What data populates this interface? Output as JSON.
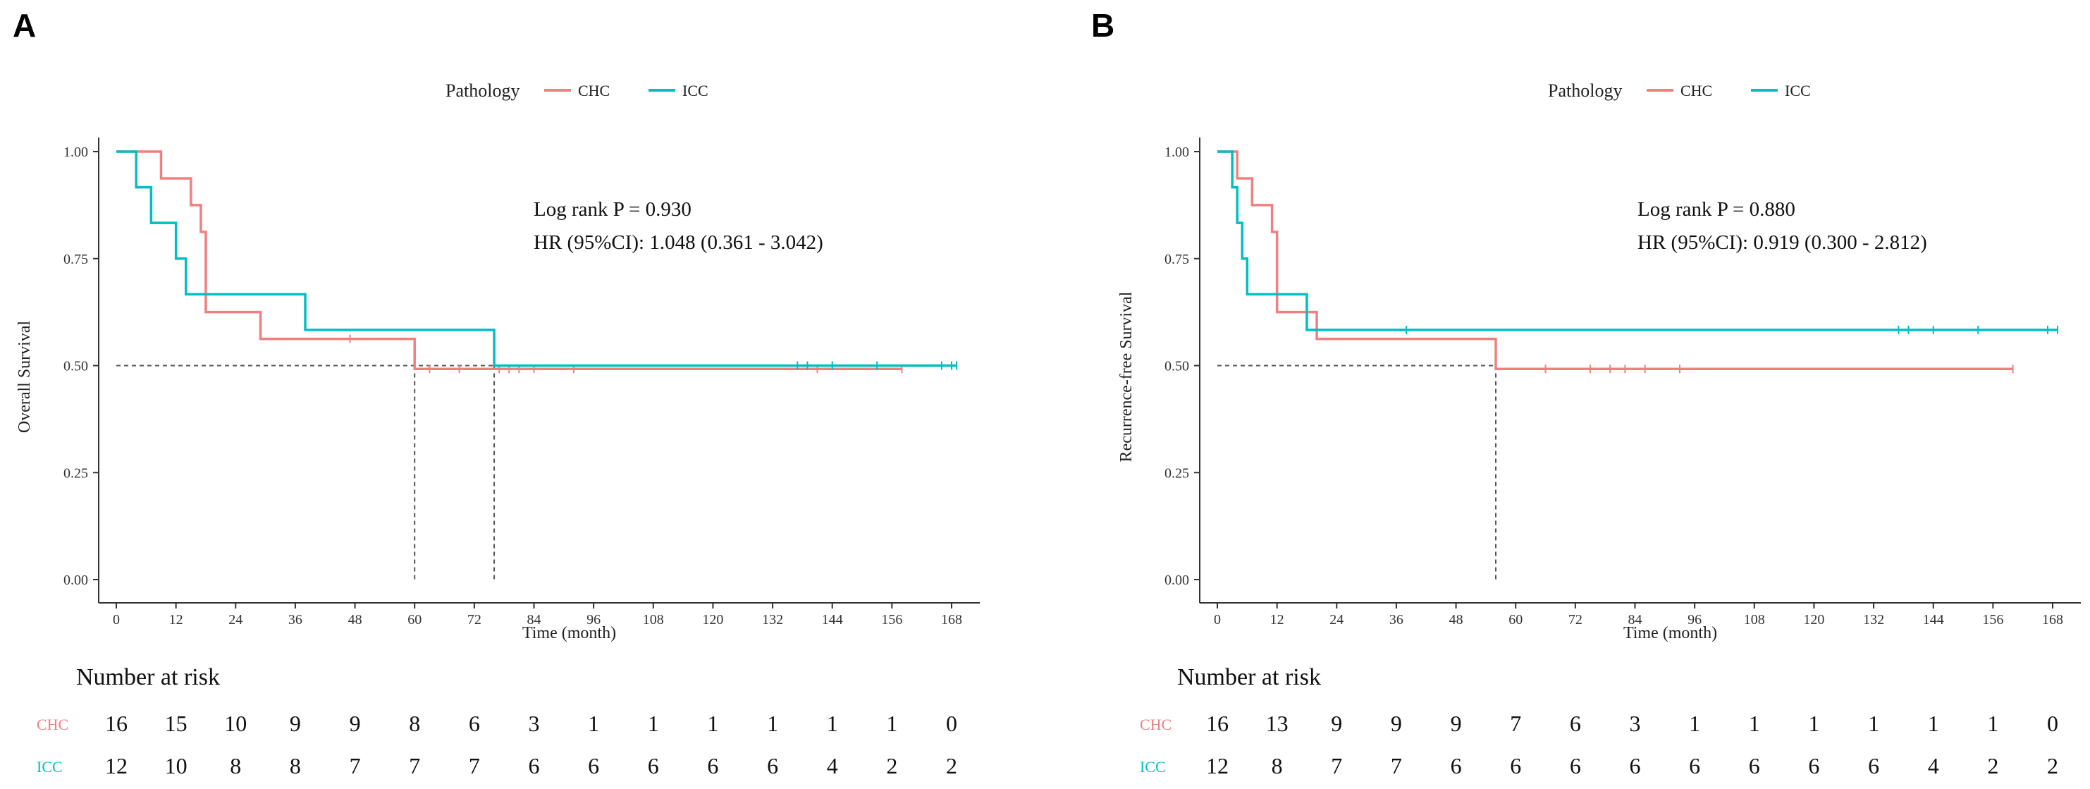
{
  "colors": {
    "CHC": "#F08080",
    "ICC": "#00BFC4"
  },
  "chart_data": [
    {
      "type": "line",
      "panel": "A",
      "legend": {
        "title": "Pathology",
        "entries": [
          "CHC",
          "ICC"
        ],
        "placement": "top-center"
      },
      "ylabel": "Overall Survival",
      "xlabel": "Time (month)",
      "xlim": [
        0,
        168
      ],
      "ylim": [
        0,
        1
      ],
      "xticks": [
        0,
        12,
        24,
        36,
        48,
        60,
        72,
        84,
        96,
        108,
        120,
        132,
        144,
        156,
        168
      ],
      "yticks": [
        0,
        0.25,
        0.5,
        0.75,
        1.0
      ],
      "ytick_labels": [
        "0.00",
        "0.25",
        "0.50",
        "0.75",
        "1.00"
      ],
      "annotations": [
        "Log rank P = 0.930",
        "HR (95%CI): 1.048 (0.361 - 3.042)"
      ],
      "median_lines": [
        60,
        76
      ],
      "series": [
        {
          "name": "CHC",
          "steps": [
            [
              0,
              1.0
            ],
            [
              9,
              0.9375
            ],
            [
              15,
              0.875
            ],
            [
              17,
              0.8125
            ],
            [
              18,
              0.625
            ],
            [
              29,
              0.5625
            ],
            [
              60,
              0.4922
            ],
            [
              158,
              0.4922
            ]
          ],
          "censors": [
            47,
            63,
            69,
            77,
            79,
            81,
            84,
            92,
            141,
            158
          ]
        },
        {
          "name": "ICC",
          "steps": [
            [
              0,
              1.0
            ],
            [
              4,
              0.9167
            ],
            [
              7,
              0.8333
            ],
            [
              12,
              0.75
            ],
            [
              14,
              0.6667
            ],
            [
              38,
              0.5833
            ],
            [
              76,
              0.5
            ],
            [
              169,
              0.5
            ]
          ],
          "censors": [
            137,
            139,
            144,
            153,
            166,
            168,
            169
          ]
        }
      ],
      "risk_table": {
        "title": "Number at risk",
        "times": [
          0,
          12,
          24,
          36,
          48,
          60,
          72,
          84,
          96,
          108,
          120,
          132,
          144,
          156,
          168
        ],
        "rows": [
          {
            "name": "CHC",
            "values": [
              "16",
              "15",
              "10",
              "9",
              "9",
              "8",
              "6",
              "3",
              "1",
              "1",
              "1",
              "1",
              "1",
              "1",
              "0"
            ]
          },
          {
            "name": "ICC",
            "values": [
              "12",
              "10",
              "8",
              "8",
              "7",
              "7",
              "7",
              "6",
              "6",
              "6",
              "6",
              "6",
              "4",
              "2",
              "2"
            ]
          }
        ]
      }
    },
    {
      "type": "line",
      "panel": "B",
      "legend": {
        "title": "Pathology",
        "entries": [
          "CHC",
          "ICC"
        ],
        "placement": "top-center"
      },
      "ylabel": "Recurrence-free Survival",
      "xlabel": "Time (month)",
      "xlim": [
        0,
        168
      ],
      "ylim": [
        0,
        1
      ],
      "xticks": [
        0,
        12,
        24,
        36,
        48,
        60,
        72,
        84,
        96,
        108,
        120,
        132,
        144,
        156,
        168
      ],
      "yticks": [
        0,
        0.25,
        0.5,
        0.75,
        1.0
      ],
      "ytick_labels": [
        "0.00",
        "0.25",
        "0.50",
        "0.75",
        "1.00"
      ],
      "annotations": [
        "Log rank P = 0.880",
        "HR (95%CI): 0.919 (0.300 - 2.812)"
      ],
      "median_lines": [
        56
      ],
      "series": [
        {
          "name": "CHC",
          "steps": [
            [
              0,
              1.0
            ],
            [
              4,
              0.9375
            ],
            [
              7,
              0.875
            ],
            [
              11,
              0.8125
            ],
            [
              12,
              0.625
            ],
            [
              20,
              0.5625
            ],
            [
              56,
              0.4922
            ],
            [
              160,
              0.4922
            ]
          ],
          "censors": [
            66,
            75,
            79,
            82,
            86,
            93,
            160
          ]
        },
        {
          "name": "ICC",
          "steps": [
            [
              0,
              1.0
            ],
            [
              3,
              0.9167
            ],
            [
              4,
              0.8333
            ],
            [
              5,
              0.75
            ],
            [
              6,
              0.6667
            ],
            [
              18,
              0.5833
            ],
            [
              169,
              0.5833
            ]
          ],
          "censors": [
            38,
            137,
            139,
            144,
            153,
            167,
            169
          ]
        }
      ],
      "risk_table": {
        "title": "Number at risk",
        "times": [
          0,
          12,
          24,
          36,
          48,
          60,
          72,
          84,
          96,
          108,
          120,
          132,
          144,
          156,
          168
        ],
        "rows": [
          {
            "name": "CHC",
            "values": [
              "16",
              "13",
              "9",
              "9",
              "9",
              "7",
              "6",
              "3",
              "1",
              "1",
              "1",
              "1",
              "1",
              "1",
              "0"
            ]
          },
          {
            "name": "ICC",
            "values": [
              "12",
              "8",
              "7",
              "7",
              "6",
              "6",
              "6",
              "6",
              "6",
              "6",
              "6",
              "6",
              "4",
              "2",
              "2"
            ]
          }
        ]
      }
    }
  ]
}
